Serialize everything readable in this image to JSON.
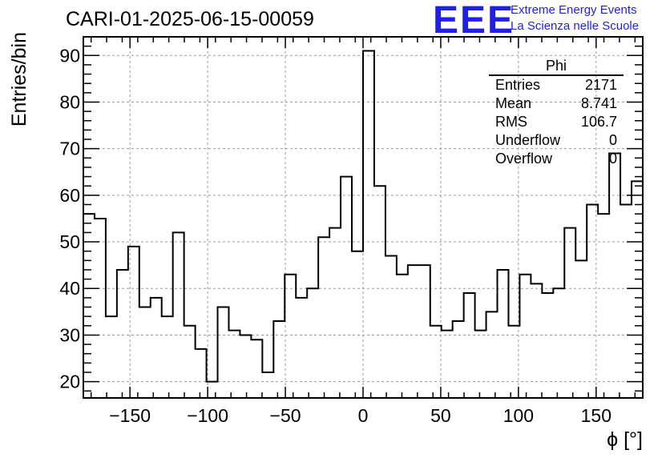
{
  "run_title": "CARI-01-2025-06-15-00059",
  "logo": {
    "mark": "EEE",
    "line1": "Extreme Energy Events",
    "line2": "La Scienza nelle Scuole",
    "color": "#1f1fe6"
  },
  "stats": {
    "name": "Phi",
    "rows": [
      {
        "label": "Entries",
        "value": "2171"
      },
      {
        "label": "Mean",
        "value": "8.741"
      },
      {
        "label": "RMS",
        "value": "106.7"
      },
      {
        "label": "Underflow",
        "value": "0"
      },
      {
        "label": "Overflow",
        "value": "0"
      }
    ]
  },
  "chart_data": {
    "type": "histogram",
    "xlabel": "ϕ [°]",
    "ylabel": "Entries/bin",
    "xlim": [
      -180,
      180
    ],
    "ylim": [
      16.5,
      94
    ],
    "grid": true,
    "bin_width": 7.2,
    "x_ticks": [
      -150,
      -100,
      -50,
      0,
      50,
      100,
      150
    ],
    "x_tick_labels": [
      "−150",
      "−100",
      "−50",
      "0",
      "50",
      "100",
      "150"
    ],
    "y_ticks": [
      20,
      30,
      40,
      50,
      60,
      70,
      80,
      90
    ],
    "y_tick_labels": [
      "20",
      "30",
      "40",
      "50",
      "60",
      "70",
      "80",
      "90"
    ],
    "bin_edges": [
      -180,
      -172.8,
      -165.6,
      -158.4,
      -151.2,
      -144,
      -136.8,
      -129.6,
      -122.4,
      -115.2,
      -108,
      -100.8,
      -93.6,
      -86.4,
      -79.2,
      -72,
      -64.8,
      -57.6,
      -50.4,
      -43.2,
      -36,
      -28.8,
      -21.6,
      -14.4,
      -7.2,
      0,
      7.2,
      14.4,
      21.6,
      28.8,
      36,
      43.2,
      50.4,
      57.6,
      64.8,
      72,
      79.2,
      86.4,
      93.6,
      100.8,
      108,
      115.2,
      122.4,
      129.6,
      136.8,
      144,
      151.2,
      158.4,
      165.6,
      172.8,
      180
    ],
    "values": [
      56,
      55,
      34,
      44,
      49,
      36,
      38,
      34,
      52,
      32,
      27,
      20,
      36,
      31,
      30,
      29,
      22,
      33,
      43,
      38,
      40,
      51,
      53,
      64,
      48,
      91,
      62,
      47,
      43,
      45,
      45,
      32,
      31,
      33,
      39,
      31,
      35,
      44,
      32,
      43,
      41,
      39,
      40,
      53,
      46,
      58,
      56,
      69,
      58,
      63
    ]
  }
}
